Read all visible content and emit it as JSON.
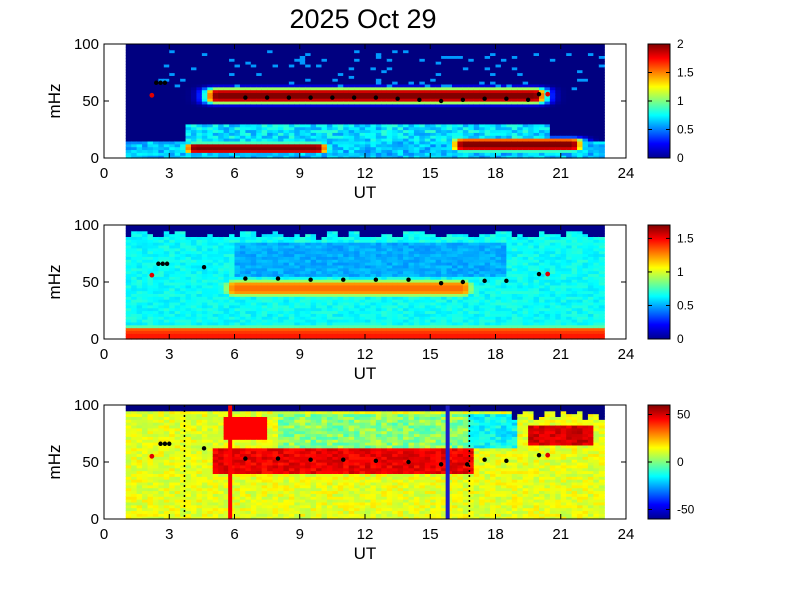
{
  "title": "2025 Oct 29",
  "chart_data": [
    {
      "type": "heatmap",
      "xlabel": "UT",
      "ylabel": "mHz",
      "xlim": [
        0,
        24
      ],
      "ylim": [
        0,
        100
      ],
      "xticks": [
        "0",
        "3",
        "6",
        "9",
        "12",
        "15",
        "18",
        "21",
        "24"
      ],
      "yticks": [
        "0",
        "50",
        "100"
      ],
      "data_coverage_ut": [
        1.0,
        23.0
      ],
      "colorbar": {
        "range": [
          0,
          2
        ],
        "ticks": [
          "0",
          "0.5",
          "1",
          "1.5",
          "2"
        ]
      },
      "bands": [
        {
          "ut": [
            5.2,
            19.8
          ],
          "mhz_center": 55,
          "mhz_halfwidth": 7,
          "level": 2.0
        },
        {
          "ut": [
            4.2,
            9.8
          ],
          "mhz_center": 9,
          "mhz_halfwidth": 5,
          "level": 2.0
        },
        {
          "ut": [
            16.5,
            21.5
          ],
          "mhz_center": 12,
          "mhz_halfwidth": 6,
          "level": 2.0
        }
      ],
      "markers": {
        "black": {
          "ut": [
            2.4,
            2.6,
            2.8,
            6.5,
            7.5,
            8.5,
            9.5,
            10.5,
            11.5,
            12.5,
            13.5,
            14.5,
            15.5,
            16.5,
            17.5,
            18.5,
            19.5,
            20.0
          ],
          "mhz": [
            66,
            66,
            66,
            53,
            53,
            53,
            53,
            53,
            53,
            53,
            52,
            51,
            50,
            51,
            52,
            52,
            51,
            56
          ]
        },
        "red": {
          "ut": [
            2.2,
            20.4
          ],
          "mhz": [
            55,
            56
          ]
        }
      }
    },
    {
      "type": "heatmap",
      "xlabel": "UT",
      "ylabel": "mHz",
      "xlim": [
        0,
        24
      ],
      "ylim": [
        0,
        100
      ],
      "xticks": [
        "0",
        "3",
        "6",
        "9",
        "12",
        "15",
        "18",
        "21",
        "24"
      ],
      "yticks": [
        "0",
        "50",
        "100"
      ],
      "data_coverage_ut": [
        1.0,
        23.0
      ],
      "colorbar": {
        "range": [
          0,
          1.7
        ],
        "ticks": [
          "0",
          "0.5",
          "1",
          "1.5"
        ]
      },
      "bands": [
        {
          "ut": [
            6.0,
            16.5
          ],
          "mhz_center": 45,
          "mhz_halfwidth": 8,
          "level": 1.3
        },
        {
          "ut": [
            1.0,
            23.0
          ],
          "mhz_center": 6,
          "mhz_halfwidth": 6,
          "level": 1.4
        }
      ],
      "markers": {
        "black": {
          "ut": [
            2.5,
            2.7,
            2.9,
            4.6,
            6.5,
            8.0,
            9.5,
            11.0,
            12.5,
            14.0,
            15.5,
            16.5,
            17.5,
            18.5,
            20.0
          ],
          "mhz": [
            66,
            66,
            66,
            63,
            53,
            53,
            52,
            52,
            52,
            52,
            49,
            50,
            51,
            51,
            57
          ]
        },
        "red": {
          "ut": [
            2.2,
            20.4
          ],
          "mhz": [
            56,
            57
          ]
        }
      }
    },
    {
      "type": "heatmap",
      "xlabel": "UT",
      "ylabel": "mHz",
      "xlim": [
        0,
        24
      ],
      "ylim": [
        0,
        100
      ],
      "xticks": [
        "0",
        "3",
        "6",
        "9",
        "12",
        "15",
        "18",
        "21",
        "24"
      ],
      "yticks": [
        "0",
        "50",
        "100"
      ],
      "data_coverage_ut": [
        1.0,
        23.0
      ],
      "colorbar": {
        "range": [
          -60,
          60
        ],
        "ticks": [
          "50",
          "0",
          "-50"
        ]
      },
      "vertical_lines": [
        {
          "ut": 5.8,
          "color": "#ff0000",
          "style": "solid"
        },
        {
          "ut": 15.8,
          "color": "#1c1cc8",
          "style": "solid"
        },
        {
          "ut": 3.7,
          "color": "#000000",
          "style": "dotted"
        },
        {
          "ut": 16.8,
          "color": "#000000",
          "style": "dotted"
        }
      ],
      "markers": {
        "black": {
          "ut": [
            2.6,
            2.8,
            3.0,
            4.6,
            6.5,
            8.0,
            9.5,
            11.0,
            12.5,
            14.0,
            15.5,
            16.7,
            17.5,
            18.5,
            20.0
          ],
          "mhz": [
            66,
            66,
            66,
            62,
            53,
            53,
            52,
            52,
            51,
            50,
            48,
            48,
            52,
            51,
            56
          ]
        },
        "red": {
          "ut": [
            2.2,
            20.4
          ],
          "mhz": [
            55,
            56
          ]
        }
      }
    }
  ]
}
